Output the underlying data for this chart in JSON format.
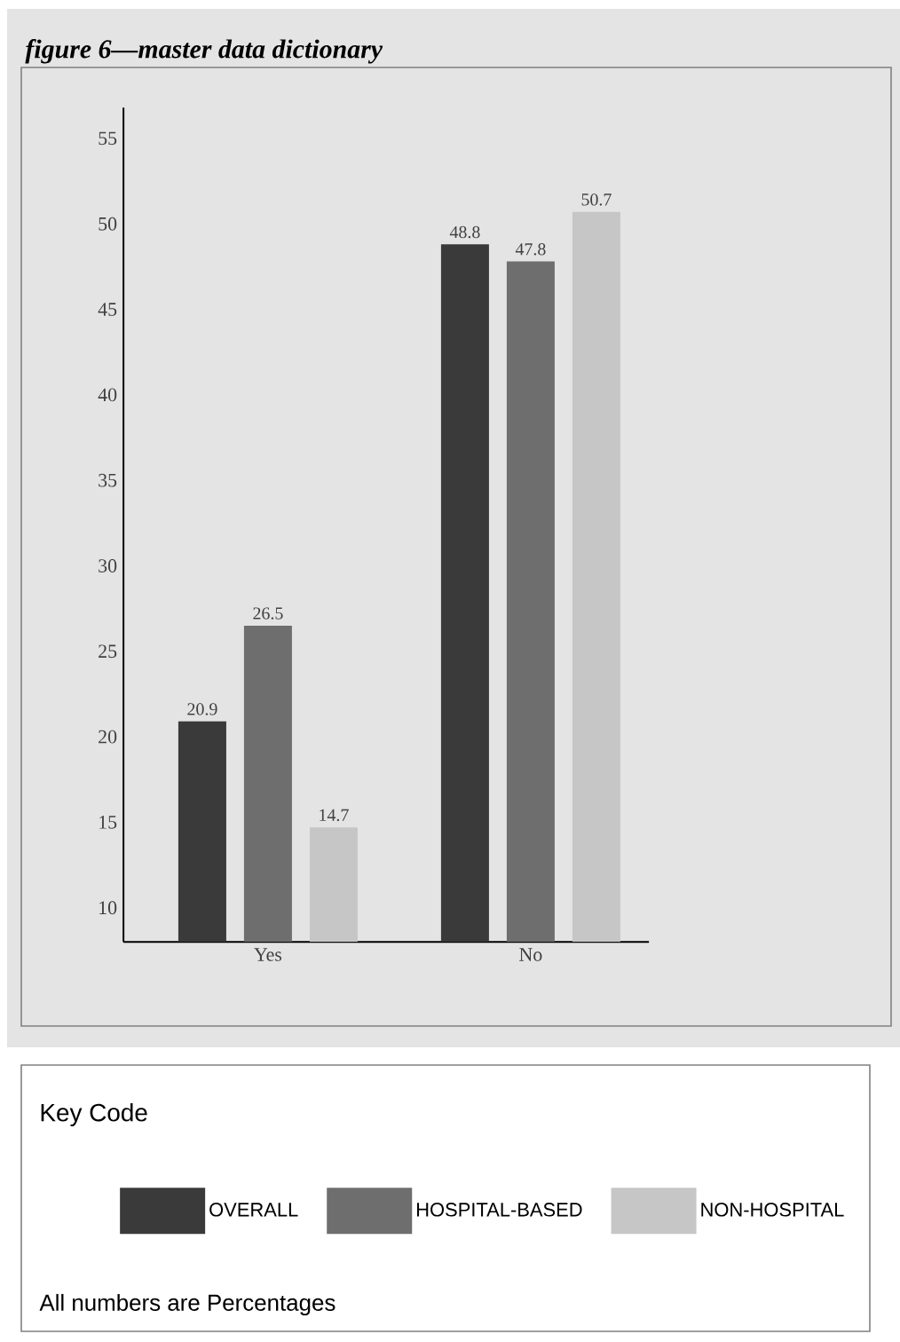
{
  "chart_data": {
    "type": "bar",
    "title": "figure 6—master data dictionary",
    "categories": [
      "Yes",
      "No"
    ],
    "series": [
      {
        "name": "OVERALL",
        "color": "#3a3a3a",
        "values": [
          20.9,
          48.8
        ]
      },
      {
        "name": "HOSPITAL-BASED",
        "color": "#6e6e6e",
        "values": [
          26.5,
          47.8
        ]
      },
      {
        "name": "NON-HOSPITAL",
        "color": "#c6c6c6",
        "values": [
          14.7,
          50.7
        ]
      }
    ],
    "ylim": [
      8,
      56.8
    ],
    "yticks": [
      10,
      15,
      20,
      25,
      30,
      35,
      40,
      45,
      50,
      55
    ],
    "data_labels": true,
    "legend": "bottom",
    "legend_title": "Key Code",
    "annotations": [
      "All numbers are Percentages"
    ]
  }
}
